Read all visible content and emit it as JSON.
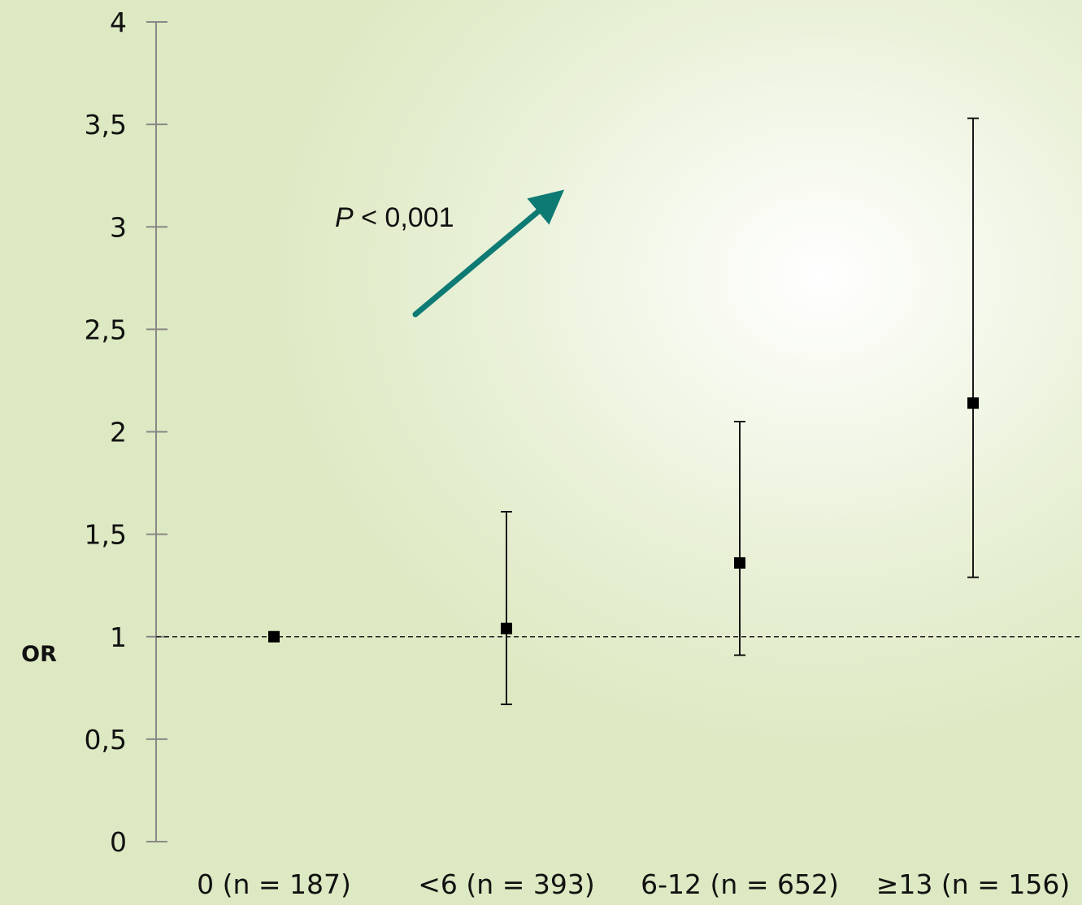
{
  "chart_data": {
    "type": "scatter",
    "ylabel": "OR",
    "ylim": [
      0,
      4
    ],
    "yticks": [
      {
        "value": 0,
        "label": "0"
      },
      {
        "value": 0.5,
        "label": "0,5"
      },
      {
        "value": 1,
        "label": "1"
      },
      {
        "value": 1.5,
        "label": "1,5"
      },
      {
        "value": 2,
        "label": "2"
      },
      {
        "value": 2.5,
        "label": "2,5"
      },
      {
        "value": 3,
        "label": "3"
      },
      {
        "value": 3.5,
        "label": "3,5"
      },
      {
        "value": 4,
        "label": "4"
      }
    ],
    "categories": [
      "0 (n = 187)",
      "<6 (n = 393)",
      "6-12 (n = 652)",
      "≥13 (n = 156)"
    ],
    "points": [
      {
        "category": "0 (n = 187)",
        "or": 1.0,
        "ci_low": null,
        "ci_high": null
      },
      {
        "category": "<6 (n = 393)",
        "or": 1.04,
        "ci_low": 0.67,
        "ci_high": 1.61
      },
      {
        "category": "6-12 (n = 652)",
        "or": 1.36,
        "ci_low": 0.91,
        "ci_high": 2.05
      },
      {
        "category": "≥13 (n = 156)",
        "or": 2.14,
        "ci_low": 1.29,
        "ci_high": 3.53
      }
    ],
    "reference_line": 1,
    "annotation": {
      "p_symbol": "P",
      "p_text": " < 0,001"
    },
    "colors": {
      "arrow": "#0e7a74",
      "points": "#000000",
      "axis": "#888888"
    },
    "grid": false,
    "legend": "none"
  }
}
